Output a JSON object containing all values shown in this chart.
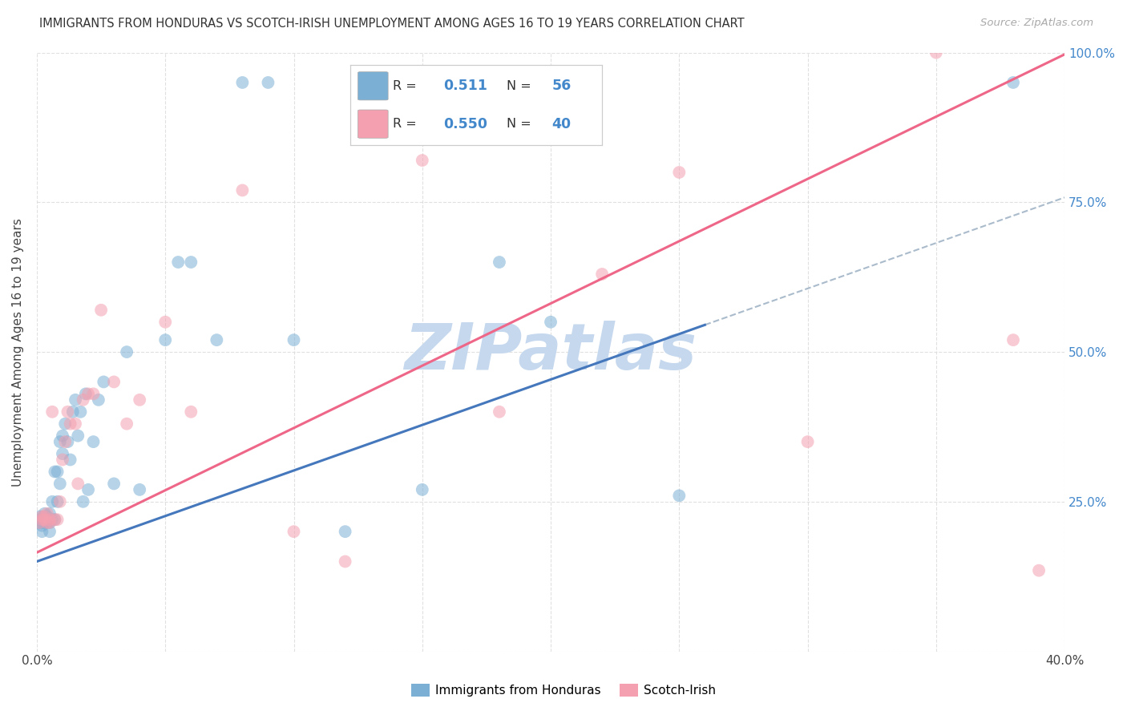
{
  "title": "IMMIGRANTS FROM HONDURAS VS SCOTCH-IRISH UNEMPLOYMENT AMONG AGES 16 TO 19 YEARS CORRELATION CHART",
  "source": "Source: ZipAtlas.com",
  "ylabel": "Unemployment Among Ages 16 to 19 years",
  "xlim": [
    0.0,
    0.4
  ],
  "ylim": [
    0.0,
    1.0
  ],
  "xticks": [
    0.0,
    0.05,
    0.1,
    0.15,
    0.2,
    0.25,
    0.3,
    0.35,
    0.4
  ],
  "xtick_labels": [
    "0.0%",
    "",
    "",
    "",
    "",
    "",
    "",
    "",
    "40.0%"
  ],
  "ytick_labels_right": [
    "",
    "25.0%",
    "50.0%",
    "75.0%",
    "100.0%"
  ],
  "yticks_right": [
    0.0,
    0.25,
    0.5,
    0.75,
    1.0
  ],
  "legend_label1": "Immigrants from Honduras",
  "legend_label2": "Scotch-Irish",
  "blue_color": "#7BAFD4",
  "pink_color": "#F4A0B0",
  "blue_line_color": "#4477BB",
  "pink_line_color": "#EE6688",
  "dash_color": "#AABBCC",
  "watermark": "ZIPatlas",
  "watermark_color": "#C5D8EE",
  "blue_slope": 1.52,
  "blue_intercept": 0.15,
  "blue_line_xmax": 0.26,
  "pink_slope": 2.08,
  "pink_intercept": 0.165,
  "dash_slope": 1.52,
  "dash_intercept": 0.15,
  "blue_scatter_x": [
    0.001,
    0.001,
    0.001,
    0.002,
    0.002,
    0.002,
    0.002,
    0.003,
    0.003,
    0.003,
    0.003,
    0.004,
    0.004,
    0.004,
    0.005,
    0.005,
    0.005,
    0.006,
    0.006,
    0.007,
    0.007,
    0.008,
    0.008,
    0.009,
    0.009,
    0.01,
    0.01,
    0.011,
    0.012,
    0.013,
    0.014,
    0.015,
    0.016,
    0.017,
    0.018,
    0.019,
    0.02,
    0.022,
    0.024,
    0.026,
    0.03,
    0.035,
    0.04,
    0.05,
    0.055,
    0.06,
    0.07,
    0.08,
    0.09,
    0.1,
    0.12,
    0.15,
    0.18,
    0.2,
    0.25,
    0.38
  ],
  "blue_scatter_y": [
    0.215,
    0.22,
    0.225,
    0.2,
    0.21,
    0.215,
    0.22,
    0.215,
    0.22,
    0.225,
    0.23,
    0.215,
    0.22,
    0.225,
    0.2,
    0.215,
    0.23,
    0.22,
    0.25,
    0.22,
    0.3,
    0.25,
    0.3,
    0.28,
    0.35,
    0.33,
    0.36,
    0.38,
    0.35,
    0.32,
    0.4,
    0.42,
    0.36,
    0.4,
    0.25,
    0.43,
    0.27,
    0.35,
    0.42,
    0.45,
    0.28,
    0.5,
    0.27,
    0.52,
    0.65,
    0.65,
    0.52,
    0.95,
    0.95,
    0.52,
    0.2,
    0.27,
    0.65,
    0.55,
    0.26,
    0.95
  ],
  "pink_scatter_x": [
    0.001,
    0.002,
    0.002,
    0.003,
    0.003,
    0.004,
    0.004,
    0.005,
    0.005,
    0.006,
    0.007,
    0.008,
    0.009,
    0.01,
    0.011,
    0.012,
    0.013,
    0.015,
    0.016,
    0.018,
    0.02,
    0.022,
    0.025,
    0.03,
    0.035,
    0.04,
    0.05,
    0.06,
    0.08,
    0.1,
    0.12,
    0.15,
    0.18,
    0.2,
    0.22,
    0.25,
    0.3,
    0.35,
    0.38,
    0.39
  ],
  "pink_scatter_y": [
    0.215,
    0.22,
    0.225,
    0.22,
    0.225,
    0.215,
    0.23,
    0.215,
    0.22,
    0.4,
    0.22,
    0.22,
    0.25,
    0.32,
    0.35,
    0.4,
    0.38,
    0.38,
    0.28,
    0.42,
    0.43,
    0.43,
    0.57,
    0.45,
    0.38,
    0.42,
    0.55,
    0.4,
    0.77,
    0.2,
    0.15,
    0.82,
    0.4,
    0.86,
    0.63,
    0.8,
    0.35,
    1.0,
    0.52,
    0.135
  ]
}
